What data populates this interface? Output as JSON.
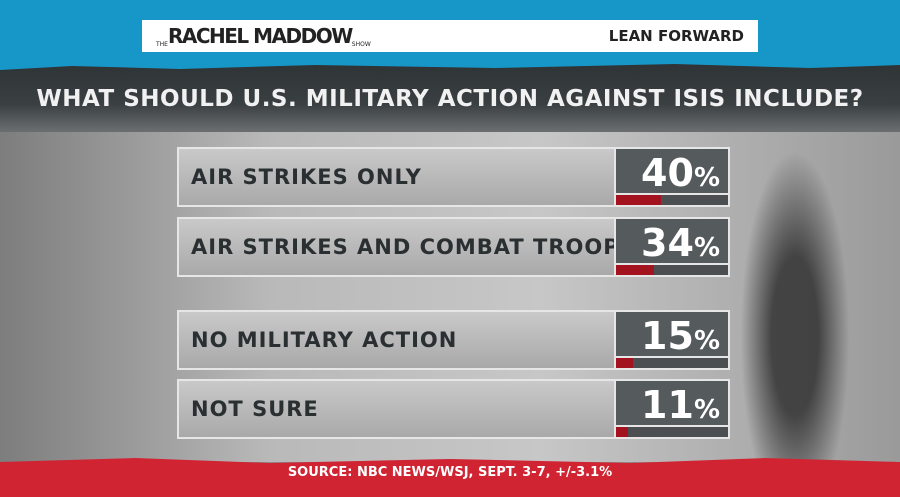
{
  "header": {
    "logo": "THE RACHEL MADDOW SHOW",
    "logo_the": "THE",
    "logo_main": "RACHEL MADDOW",
    "logo_show": "SHOW",
    "tagline": "LEAN FORWARD"
  },
  "chart_data": {
    "type": "bar",
    "title": "WHAT SHOULD U.S. MILITARY ACTION AGAINST ISIS INCLUDE?",
    "categories": [
      "AIR STRIKES ONLY",
      "AIR STRIKES AND COMBAT TROOPS",
      "NO MILITARY ACTION",
      "NOT SURE"
    ],
    "values": [
      40,
      34,
      15,
      11
    ],
    "labels": [
      "40",
      "34",
      "15",
      "11"
    ],
    "unit": "%",
    "ylim": [
      0,
      100
    ],
    "bar_color": "#a3131f",
    "source": "SOURCE: NBC NEWS/WSJ, SEPT. 3-7, +/-3.1%"
  }
}
